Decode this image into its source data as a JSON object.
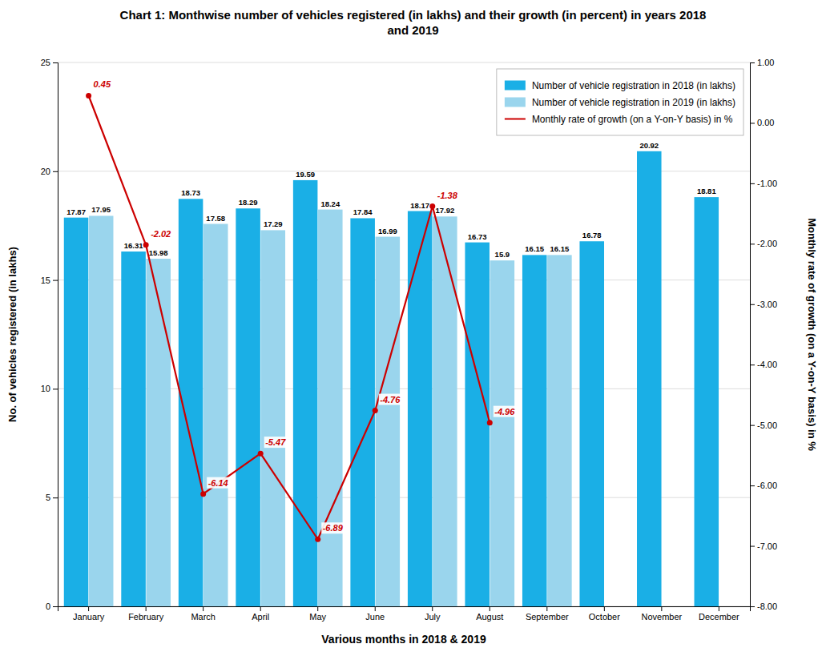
{
  "chart_data": {
    "type": "bar",
    "title": "Chart 1: Monthwise number of vehicles registered (in lakhs) and their growth (in percent) in years 2018\nand 2019",
    "xlabel": "Various months in 2018 & 2019",
    "ylabel": "No. of vehicles registered (in lakhs)",
    "y2label": "Monthly rate of growth (on a Y-on-Y basis) in %",
    "categories": [
      "January",
      "February",
      "March",
      "April",
      "May",
      "June",
      "July",
      "August",
      "September",
      "October",
      "November",
      "December"
    ],
    "series": [
      {
        "name": "Number of vehicle registration in 2018 (in lakhs)",
        "type": "bar",
        "color": "#1AAFE6",
        "values": [
          17.87,
          16.31,
          18.73,
          18.29,
          19.59,
          17.84,
          18.17,
          16.73,
          16.15,
          16.78,
          20.92,
          18.81
        ]
      },
      {
        "name": "Number of vehicle registration in 2019 (in lakhs)",
        "type": "bar",
        "color": "#9AD5ED",
        "values": [
          17.95,
          15.98,
          17.58,
          17.29,
          18.24,
          16.99,
          17.92,
          15.9,
          16.15,
          null,
          null,
          null
        ]
      },
      {
        "name": "Monthly rate of growth (on a Y-on-Y basis) in %",
        "type": "line",
        "axis": "y2",
        "color": "#CC0000",
        "marker": "circle",
        "values": [
          0.45,
          -2.02,
          -6.14,
          -5.47,
          -6.89,
          -4.76,
          -1.38,
          -4.96,
          null,
          null,
          null,
          null
        ]
      }
    ],
    "ylim": [
      0,
      25
    ],
    "yticks": [
      0,
      5,
      10,
      15,
      20,
      25
    ],
    "y2lim": [
      -8.0,
      1.0
    ],
    "y2ticks": [
      {
        "value": 1.0,
        "label": "1.00"
      },
      {
        "value": 0.0,
        "label": "0.00"
      },
      {
        "value": -1.0,
        "label": "-1.00"
      },
      {
        "value": -2.0,
        "label": "-2.00"
      },
      {
        "value": -3.0,
        "label": "-3.00"
      },
      {
        "value": -4.0,
        "label": "-4.00"
      },
      {
        "value": -5.0,
        "label": "-5.00"
      },
      {
        "value": -6.0,
        "label": "-6.00"
      },
      {
        "value": -7.0,
        "label": "-7.00"
      },
      {
        "value": -8.0,
        "label": "-8.00"
      }
    ],
    "grid": true,
    "legend": "upper right",
    "data_labels": true
  }
}
